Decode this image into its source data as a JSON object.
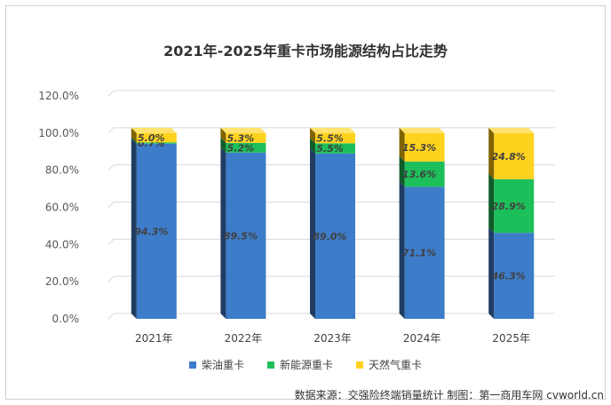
{
  "chart_data": {
    "type": "bar",
    "stacked": true,
    "title": "2021年-2025年重卡市场能源结构占比走势",
    "categories": [
      "2021年",
      "2022年",
      "2023年",
      "2024年",
      "2025年"
    ],
    "series": [
      {
        "name": "柴油重卡",
        "values": [
          94.3,
          89.5,
          89.0,
          71.1,
          46.3
        ],
        "labels": [
          "94.3%",
          "89.5%",
          "89.0%",
          "71.1%",
          "46.3%"
        ]
      },
      {
        "name": "新能源重卡",
        "values": [
          0.7,
          5.2,
          5.5,
          13.6,
          28.9
        ],
        "labels": [
          "0.7%",
          "5.2%",
          "5.5%",
          "13.6%",
          "28.9%"
        ]
      },
      {
        "name": "天然气重卡",
        "values": [
          5.0,
          5.3,
          5.5,
          15.3,
          24.8
        ],
        "labels": [
          "5.0%",
          "5.3%",
          "5.5%",
          "15.3%",
          "24.8%"
        ]
      }
    ],
    "ylim": [
      0,
      120
    ],
    "yticks": [
      "0.0%",
      "20.0%",
      "40.0%",
      "60.0%",
      "80.0%",
      "100.0%",
      "120.0%"
    ],
    "grid": true,
    "legend_position": "bottom"
  },
  "colors": {
    "series": [
      "#3d7cc9",
      "#1dbf5a",
      "#ffd21e"
    ],
    "side": [
      "#1f3d63",
      "#0f5c2b",
      "#806400"
    ],
    "top": [
      "#6a9fde",
      "#52d984",
      "#ffe36e"
    ]
  },
  "source_note": "数据来源：交强险终端销量统计 制图：第一商用车网 cvworld.cn"
}
